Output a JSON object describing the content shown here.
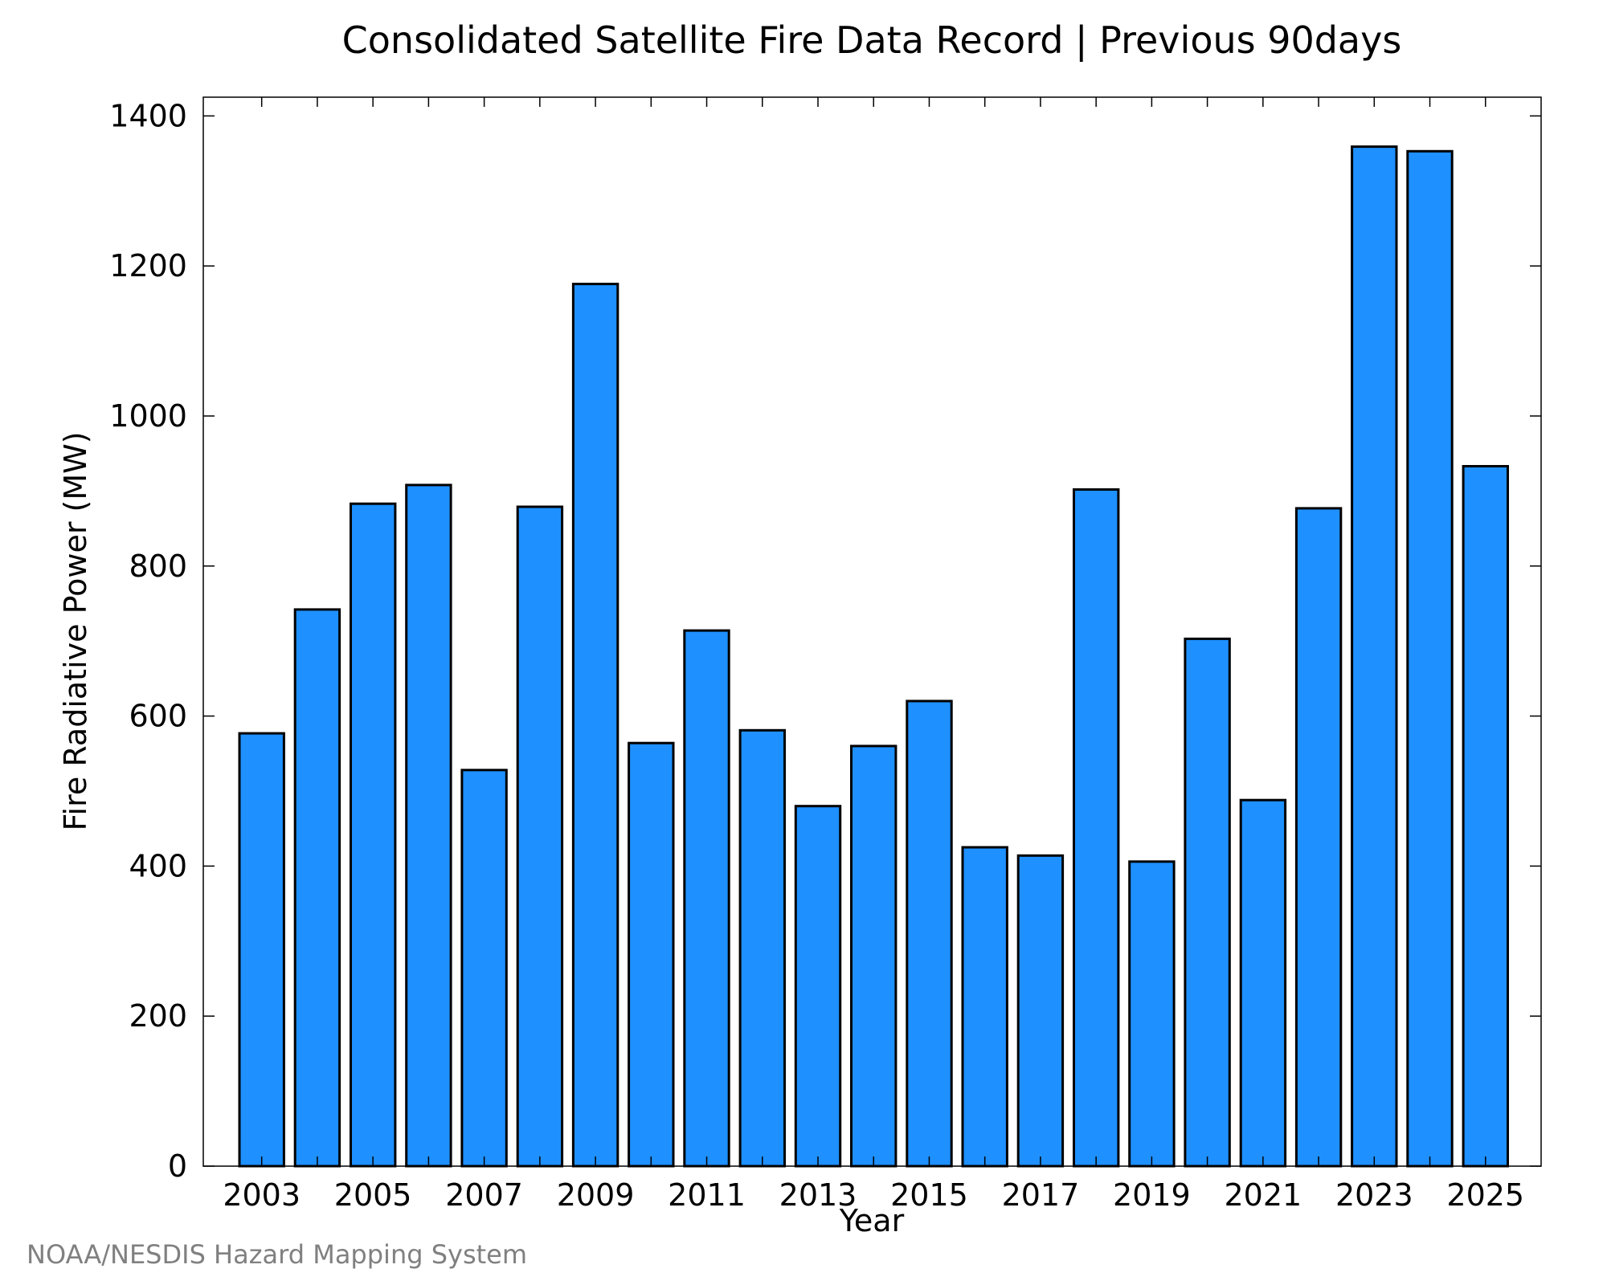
{
  "chart_data": {
    "type": "bar",
    "title": "Consolidated Satellite Fire Data Record | Previous 90days",
    "xlabel": "Year",
    "ylabel": "Fire Radiative Power (MW)",
    "categories": [
      "2003",
      "2004",
      "2005",
      "2006",
      "2007",
      "2008",
      "2009",
      "2010",
      "2011",
      "2012",
      "2013",
      "2014",
      "2015",
      "2016",
      "2017",
      "2018",
      "2019",
      "2020",
      "2021",
      "2022",
      "2023",
      "2024",
      "2025"
    ],
    "x_tick_labels": [
      "2003",
      "2005",
      "2007",
      "2009",
      "2011",
      "2013",
      "2015",
      "2017",
      "2019",
      "2021",
      "2023",
      "2025"
    ],
    "values": [
      577,
      742,
      883,
      908,
      528,
      879,
      1176,
      564,
      714,
      581,
      480,
      560,
      620,
      425,
      414,
      902,
      406,
      703,
      488,
      877,
      1359,
      1353,
      933
    ],
    "ylim": [
      0,
      1425
    ],
    "y_ticks": [
      0,
      200,
      400,
      600,
      800,
      1000,
      1200,
      1400
    ],
    "grid": false,
    "legend": "none",
    "bar_color": "#1e90ff"
  },
  "credit": "NOAA/NESDIS Hazard Mapping System"
}
